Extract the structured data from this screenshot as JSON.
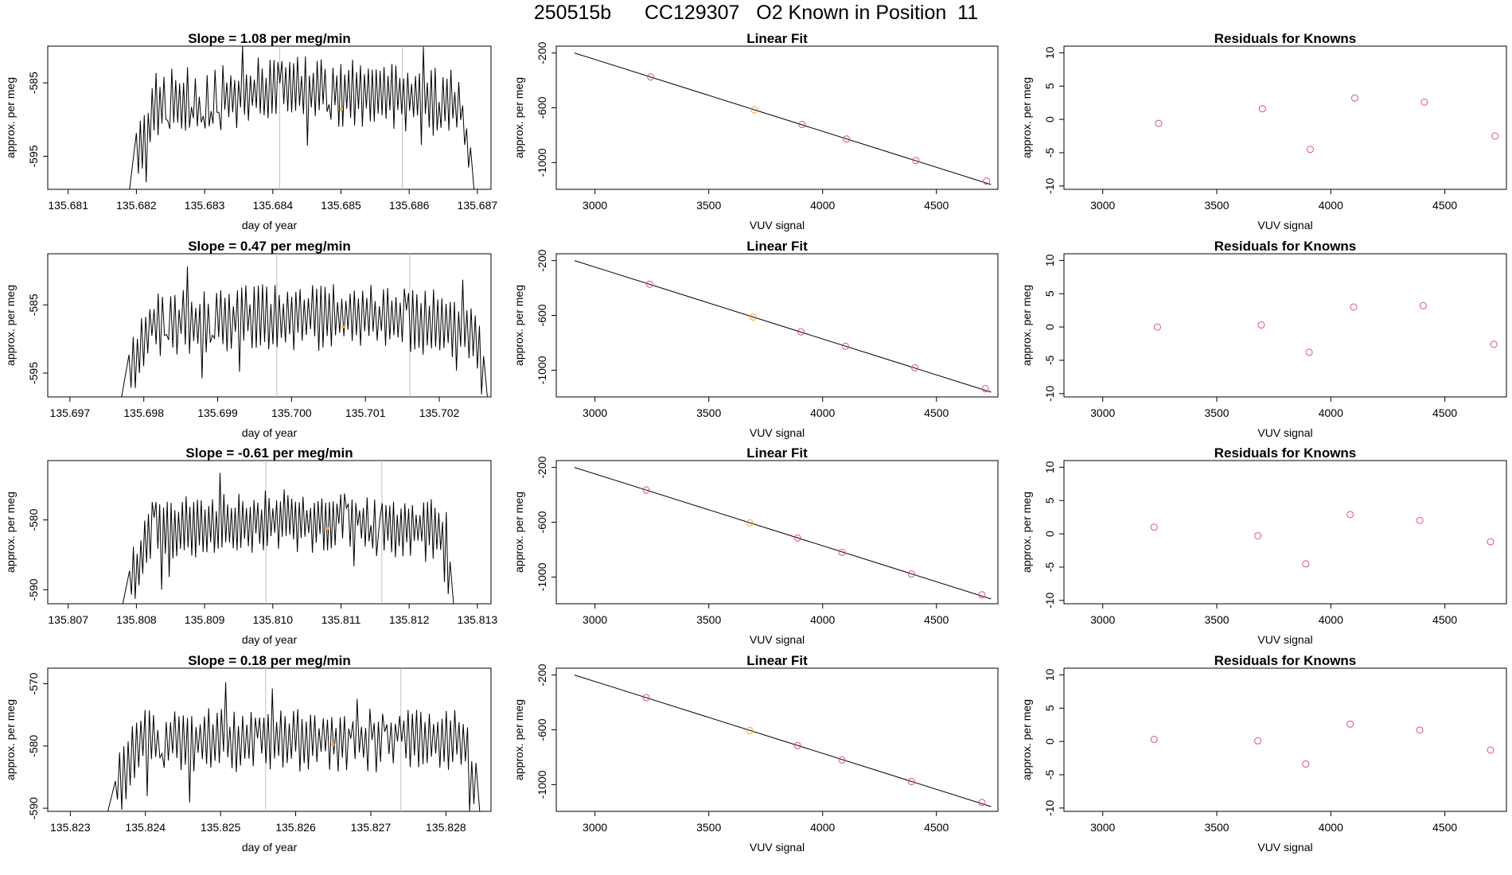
{
  "figure_title": "250515b      CC129307   O2 Known in Position  11",
  "colors": {
    "line": "#000000",
    "axis": "#000000",
    "vline": "#bebebe",
    "point_red": "#df536b",
    "point_orange": "#f5a623"
  },
  "chart_data": [
    {
      "type": "line",
      "title": "Slope =  1.08  per meg/min",
      "xlabel": "day of year",
      "ylabel": "approx. per meg",
      "xlim": [
        135.6807,
        135.6872
      ],
      "ylim": [
        -599.5,
        -580
      ],
      "xticks": [
        135.681,
        135.682,
        135.683,
        135.684,
        135.685,
        135.686,
        135.687
      ],
      "xtick_labels": [
        "135.681",
        "135.682",
        "135.683",
        "135.684",
        "135.685",
        "135.686",
        "135.687"
      ],
      "yticks": [
        -585,
        -595
      ],
      "ytick_labels": [
        "-585",
        "-595"
      ],
      "signal": {
        "start": 135.682,
        "end": 135.6869,
        "base": -588.3,
        "amp": 4.8,
        "rise": 2.2
      },
      "vlines": [
        135.6841,
        135.6859
      ],
      "marker": {
        "x": 135.685,
        "y": -588.6
      }
    },
    {
      "type": "line_fit",
      "title": "Linear Fit",
      "xlabel": "VUV signal",
      "ylabel": "approx. per meg",
      "xlim": [
        2830,
        4770
      ],
      "ylim": [
        -1195,
        -150
      ],
      "xticks": [
        3000,
        3500,
        4000,
        4500
      ],
      "xtick_labels": [
        "3000",
        "3500",
        "4000",
        "4500"
      ],
      "yticks": [
        -200,
        -600,
        -1000
      ],
      "ytick_labels": [
        "-200",
        -600,
        "-1000"
      ],
      "fit": {
        "x": [
          2910,
          4740
        ],
        "y": [
          -200,
          -1160
        ]
      },
      "points": [
        {
          "x": 3245,
          "y": -375
        },
        {
          "x": 3700,
          "y": -615
        },
        {
          "x": 3910,
          "y": -722
        },
        {
          "x": 4105,
          "y": -828
        },
        {
          "x": 4410,
          "y": -985
        },
        {
          "x": 4720,
          "y": -1135
        }
      ],
      "highlight_index": 1
    },
    {
      "type": "scatter",
      "title": "Residuals for Knowns",
      "xlabel": "VUV signal",
      "ylabel": "approx. per meg",
      "xlim": [
        2830,
        4770
      ],
      "ylim": [
        -10.5,
        11
      ],
      "xticks": [
        3000,
        3500,
        4000,
        4500
      ],
      "xtick_labels": [
        "3000",
        "3500",
        "4000",
        "4500"
      ],
      "yticks": [
        10,
        5,
        0,
        -5,
        -10
      ],
      "ytick_labels": [
        "10",
        "5",
        "0",
        "-5",
        "-10"
      ],
      "points": [
        {
          "x": 3245,
          "y": -0.6
        },
        {
          "x": 3700,
          "y": 1.6
        },
        {
          "x": 3910,
          "y": -4.5
        },
        {
          "x": 4105,
          "y": 3.2
        },
        {
          "x": 4410,
          "y": 2.6
        },
        {
          "x": 4720,
          "y": -2.5
        }
      ]
    },
    {
      "type": "line",
      "title": "Slope =  0.47  per meg/min",
      "xlabel": "day of year",
      "ylabel": "approx. per meg",
      "xlim": [
        135.6967,
        135.7027
      ],
      "ylim": [
        -598.5,
        -577.5
      ],
      "xticks": [
        135.697,
        135.698,
        135.699,
        135.7,
        135.701,
        135.702
      ],
      "xtick_labels": [
        "135.697",
        "135.698",
        "135.699",
        "135.700",
        "135.701",
        "135.702"
      ],
      "yticks": [
        -585,
        -595
      ],
      "ytick_labels": [
        "-585",
        "-595"
      ],
      "signal": {
        "start": 135.6978,
        "end": 135.7026,
        "base": -588.0,
        "amp": 5.0,
        "rise": 1.2
      },
      "vlines": [
        135.6998,
        135.7016
      ],
      "marker": {
        "x": 135.7007,
        "y": -588.2
      }
    },
    {
      "type": "line_fit",
      "title": "Linear Fit",
      "xlabel": "VUV signal",
      "ylabel": "approx. per meg",
      "xlim": [
        2830,
        4770
      ],
      "ylim": [
        -1195,
        -150
      ],
      "xticks": [
        3000,
        3500,
        4000,
        4500
      ],
      "xtick_labels": [
        "3000",
        "3500",
        "4000",
        "4500"
      ],
      "yticks": [
        -200,
        -600,
        -1000
      ],
      "ytick_labels": [
        "-200",
        "-600",
        "-1000"
      ],
      "fit": {
        "x": [
          2910,
          4740
        ],
        "y": [
          -200,
          -1160
        ]
      },
      "points": [
        {
          "x": 3240,
          "y": -372
        },
        {
          "x": 3695,
          "y": -612
        },
        {
          "x": 3905,
          "y": -720
        },
        {
          "x": 4100,
          "y": -825
        },
        {
          "x": 4405,
          "y": -982
        },
        {
          "x": 4715,
          "y": -1135
        }
      ],
      "highlight_index": 1
    },
    {
      "type": "scatter",
      "title": "Residuals for Knowns",
      "xlabel": "VUV signal",
      "ylabel": "approx. per meg",
      "xlim": [
        2830,
        4770
      ],
      "ylim": [
        -10.5,
        11
      ],
      "xticks": [
        3000,
        3500,
        4000,
        4500
      ],
      "xtick_labels": [
        "3000",
        "3500",
        "4000",
        "4500"
      ],
      "yticks": [
        10,
        5,
        0,
        -5,
        -10
      ],
      "ytick_labels": [
        "10",
        "5",
        "0",
        "-5",
        "-10"
      ],
      "points": [
        {
          "x": 3240,
          "y": 0.0
        },
        {
          "x": 3695,
          "y": 0.3
        },
        {
          "x": 3905,
          "y": -3.8
        },
        {
          "x": 4100,
          "y": 3.0
        },
        {
          "x": 4405,
          "y": 3.2
        },
        {
          "x": 4715,
          "y": -2.6
        }
      ]
    },
    {
      "type": "line",
      "title": "Slope =  -0.61  per meg/min",
      "xlabel": "day of year",
      "ylabel": "approx. per meg",
      "xlim": [
        135.8067,
        135.8132
      ],
      "ylim": [
        -592,
        -571.5
      ],
      "xticks": [
        135.807,
        135.808,
        135.809,
        135.81,
        135.811,
        135.812,
        135.813
      ],
      "xtick_labels": [
        "135.807",
        "135.808",
        "135.809",
        "135.810",
        "135.811",
        "135.812",
        "135.813"
      ],
      "yticks": [
        -580,
        -590
      ],
      "ytick_labels": [
        "-580",
        "-590"
      ],
      "signal": {
        "start": 135.8079,
        "end": 135.8126,
        "base": -581.8,
        "amp": 4.6,
        "rise": 1.6
      },
      "vlines": [
        135.8099,
        135.8116
      ],
      "marker": {
        "x": 135.8108,
        "y": -581.2
      }
    },
    {
      "type": "line_fit",
      "title": "Linear Fit",
      "xlabel": "VUV signal",
      "ylabel": "approx. per meg",
      "xlim": [
        2830,
        4770
      ],
      "ylim": [
        -1195,
        -150
      ],
      "xticks": [
        3000,
        3500,
        4000,
        4500
      ],
      "xtick_labels": [
        "3000",
        "3500",
        "4000",
        "4500"
      ],
      "yticks": [
        -200,
        -600,
        -1000
      ],
      "ytick_labels": [
        "-200",
        "-600",
        "-1000"
      ],
      "fit": {
        "x": [
          2910,
          4740
        ],
        "y": [
          -200,
          -1160
        ]
      },
      "points": [
        {
          "x": 3225,
          "y": -365
        },
        {
          "x": 3680,
          "y": -605
        },
        {
          "x": 3890,
          "y": -715
        },
        {
          "x": 4085,
          "y": -820
        },
        {
          "x": 4390,
          "y": -978
        },
        {
          "x": 4700,
          "y": -1130
        }
      ],
      "highlight_index": 1
    },
    {
      "type": "scatter",
      "title": "Residuals for Knowns",
      "xlabel": "VUV signal",
      "ylabel": "approx. per meg",
      "xlim": [
        2830,
        4770
      ],
      "ylim": [
        -10.5,
        11
      ],
      "xticks": [
        3000,
        3500,
        4000,
        4500
      ],
      "xtick_labels": [
        "3000",
        "3500",
        "4000",
        "4500"
      ],
      "yticks": [
        10,
        5,
        0,
        -5,
        -10
      ],
      "ytick_labels": [
        "10",
        "5",
        "0",
        "-5",
        "-10"
      ],
      "points": [
        {
          "x": 3225,
          "y": 1.0
        },
        {
          "x": 3680,
          "y": -0.3
        },
        {
          "x": 3890,
          "y": -4.5
        },
        {
          "x": 4085,
          "y": 2.9
        },
        {
          "x": 4390,
          "y": 2.0
        },
        {
          "x": 4700,
          "y": -1.2
        }
      ]
    },
    {
      "type": "line",
      "title": "Slope =  0.18  per meg/min",
      "xlabel": "day of year",
      "ylabel": "approx. per meg",
      "xlim": [
        135.8227,
        135.8286
      ],
      "ylim": [
        -590.5,
        -567.5
      ],
      "xticks": [
        135.823,
        135.824,
        135.825,
        135.826,
        135.827,
        135.828
      ],
      "xtick_labels": [
        "135.823",
        "135.824",
        "135.825",
        "135.826",
        "135.827",
        "135.828"
      ],
      "yticks": [
        -570,
        -580,
        -590
      ],
      "ytick_labels": [
        "-570",
        "-580",
        "-590"
      ],
      "signal": {
        "start": 135.8236,
        "end": 135.8284,
        "base": -579.5,
        "amp": 5.2,
        "rise": 0.5
      },
      "vlines": [
        135.8256,
        135.8274
      ],
      "marker": {
        "x": 135.8265,
        "y": -579.8
      }
    },
    {
      "type": "line_fit",
      "title": "Linear Fit",
      "xlabel": "VUV signal",
      "ylabel": "approx. per meg",
      "xlim": [
        2830,
        4770
      ],
      "ylim": [
        -1195,
        -150
      ],
      "xticks": [
        3000,
        3500,
        4000,
        4500
      ],
      "xtick_labels": [
        "3000",
        "3500",
        "4000",
        "4500"
      ],
      "yticks": [
        -200,
        -600,
        -1000
      ],
      "ytick_labels": [
        "-200",
        "-600",
        "-1000"
      ],
      "fit": {
        "x": [
          2910,
          4740
        ],
        "y": [
          -200,
          -1160
        ]
      },
      "points": [
        {
          "x": 3225,
          "y": -365
        },
        {
          "x": 3680,
          "y": -605
        },
        {
          "x": 3890,
          "y": -715
        },
        {
          "x": 4085,
          "y": -820
        },
        {
          "x": 4390,
          "y": -978
        },
        {
          "x": 4700,
          "y": -1130
        }
      ],
      "highlight_index": 1
    },
    {
      "type": "scatter",
      "title": "Residuals for Knowns",
      "xlabel": "VUV signal",
      "ylabel": "approx. per meg",
      "xlim": [
        2830,
        4770
      ],
      "ylim": [
        -10.5,
        11
      ],
      "xticks": [
        3000,
        3500,
        4000,
        4500
      ],
      "xtick_labels": [
        "3000",
        "3500",
        "4000",
        "4500"
      ],
      "yticks": [
        10,
        5,
        0,
        -5,
        -10
      ],
      "ytick_labels": [
        "10",
        "5",
        "0",
        "-5",
        "-10"
      ],
      "points": [
        {
          "x": 3225,
          "y": 0.3
        },
        {
          "x": 3680,
          "y": 0.1
        },
        {
          "x": 3890,
          "y": -3.4
        },
        {
          "x": 4085,
          "y": 2.6
        },
        {
          "x": 4390,
          "y": 1.7
        },
        {
          "x": 4700,
          "y": -1.3
        }
      ]
    }
  ]
}
